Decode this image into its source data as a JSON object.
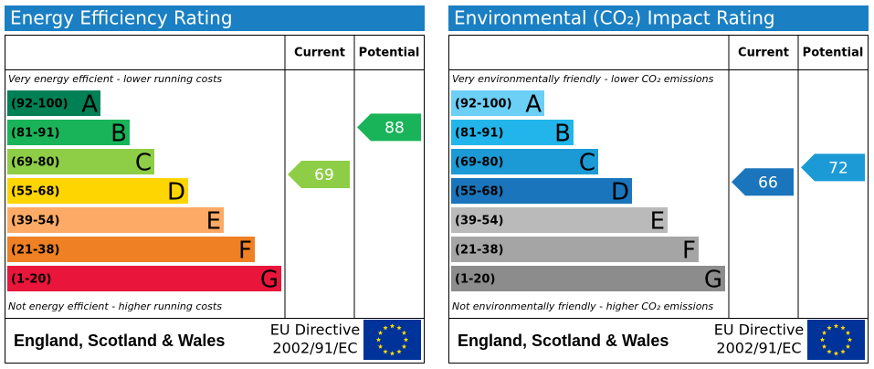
{
  "chart_data": [
    {
      "type": "rating",
      "title": "Energy Efficiency Rating",
      "columns": [
        "Current",
        "Potential"
      ],
      "top_note": "Very energy efficient - lower running costs",
      "bottom_note": "Not energy efficient - higher running costs",
      "bands": [
        {
          "range": "(92-100)",
          "letter": "A",
          "color": "#008054"
        },
        {
          "range": "(81-91)",
          "letter": "B",
          "color": "#19b459"
        },
        {
          "range": "(69-80)",
          "letter": "C",
          "color": "#8dce46"
        },
        {
          "range": "(55-68)",
          "letter": "D",
          "color": "#ffd500"
        },
        {
          "range": "(39-54)",
          "letter": "E",
          "color": "#fcaa65"
        },
        {
          "range": "(21-38)",
          "letter": "F",
          "color": "#ef8023"
        },
        {
          "range": "(1-20)",
          "letter": "G",
          "color": "#e9153b"
        }
      ],
      "current": 69,
      "potential": 88,
      "footer": {
        "region": "England, Scotland & Wales",
        "directive": [
          "EU Directive",
          "2002/91/EC"
        ]
      }
    },
    {
      "type": "rating",
      "title": "Environmental (CO₂) Impact Rating",
      "columns": [
        "Current",
        "Potential"
      ],
      "top_note": "Very environmentally friendly - lower CO₂ emissions",
      "bottom_note": "Not environmentally friendly - higher CO₂ emissions",
      "bands": [
        {
          "range": "(92-100)",
          "letter": "A",
          "color": "#6ccff6"
        },
        {
          "range": "(81-91)",
          "letter": "B",
          "color": "#22b5eb"
        },
        {
          "range": "(69-80)",
          "letter": "C",
          "color": "#1c9ad6"
        },
        {
          "range": "(55-68)",
          "letter": "D",
          "color": "#1a75bc"
        },
        {
          "range": "(39-54)",
          "letter": "E",
          "color": "#bababa"
        },
        {
          "range": "(21-38)",
          "letter": "F",
          "color": "#a5a5a5"
        },
        {
          "range": "(1-20)",
          "letter": "G",
          "color": "#8c8c8c"
        }
      ],
      "current": 66,
      "potential": 72,
      "footer": {
        "region": "England, Scotland & Wales",
        "directive": [
          "EU Directive",
          "2002/91/EC"
        ]
      }
    }
  ]
}
